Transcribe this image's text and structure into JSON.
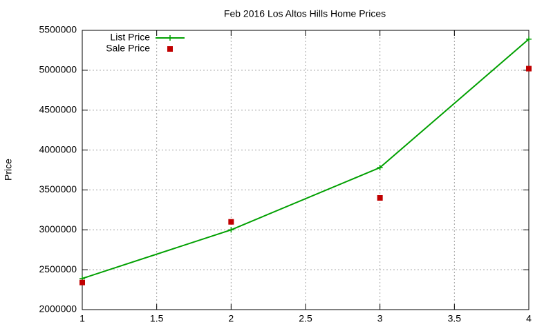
{
  "chart_data": {
    "type": "line",
    "title": "Feb 2016 Los Altos Hills Home Prices",
    "y_label": "Price",
    "x": [
      1,
      2,
      3,
      4
    ],
    "series": [
      {
        "name": "List Price",
        "color": "#00a000",
        "mode": "linespoints",
        "values": [
          2390000,
          3000000,
          3780000,
          5390000
        ]
      },
      {
        "name": "Sale Price",
        "color": "#c00000",
        "mode": "points",
        "values": [
          2340000,
          3100000,
          3400000,
          5020000
        ]
      }
    ],
    "xlim": [
      1,
      4
    ],
    "xticks": [
      1,
      1.5,
      2,
      2.5,
      3,
      3.5,
      4
    ],
    "ylim": [
      2000000,
      5500000
    ],
    "yticks": [
      2000000,
      2500000,
      3000000,
      3500000,
      4000000,
      4500000,
      5000000,
      5500000
    ],
    "grid": true,
    "legend": "top-left"
  }
}
